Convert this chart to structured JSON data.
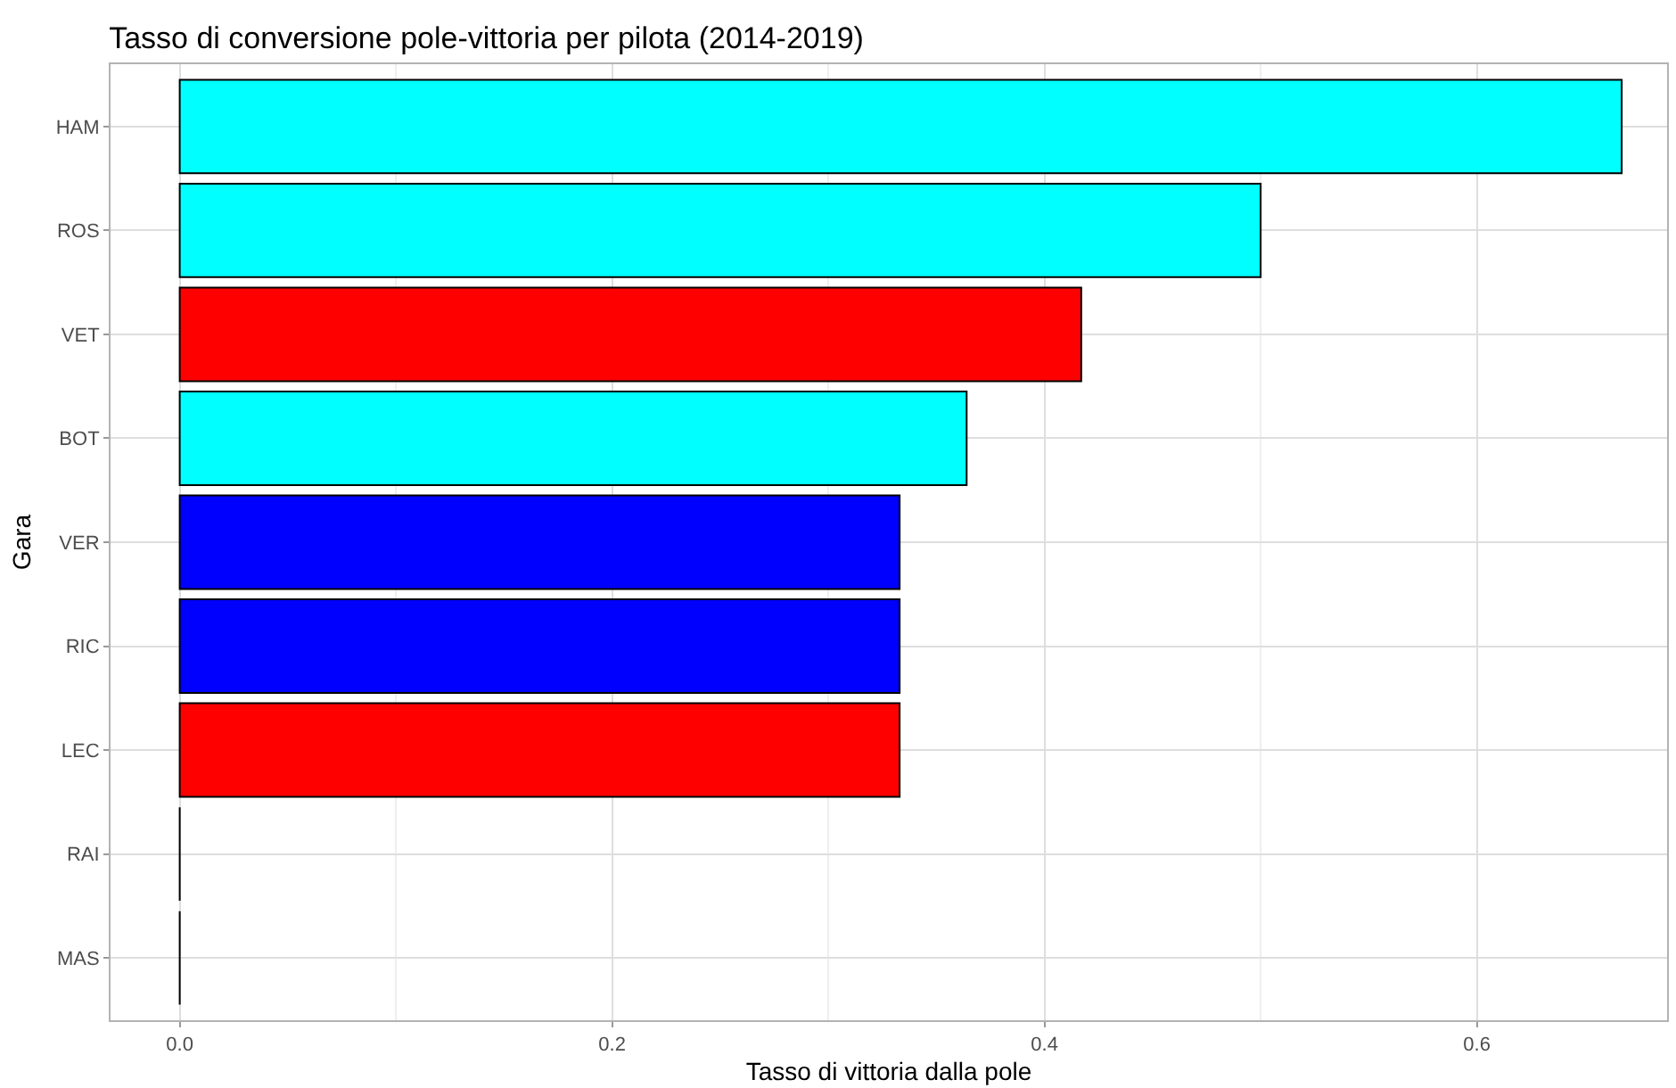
{
  "chart_data": {
    "type": "bar",
    "orientation": "horizontal",
    "title": "Tasso di conversione pole-vittoria per pilota (2014-2019)",
    "xlabel": "Tasso di vittoria dalla pole",
    "ylabel": "Gara",
    "categories": [
      "HAM",
      "ROS",
      "VET",
      "BOT",
      "VER",
      "RIC",
      "LEC",
      "RAI",
      "MAS"
    ],
    "values": [
      0.667,
      0.5,
      0.417,
      0.364,
      0.333,
      0.333,
      0.333,
      0,
      0
    ],
    "colors": [
      "#00ffff",
      "#00ffff",
      "#ff0000",
      "#00ffff",
      "#0000ff",
      "#0000ff",
      "#ff0000",
      "#000000",
      "#000000"
    ],
    "xlim": [
      -0.032,
      0.688
    ],
    "xticks": [
      {
        "value": 0,
        "label": "0.0"
      },
      0.2,
      0.4,
      0.6
    ],
    "grid": true
  }
}
